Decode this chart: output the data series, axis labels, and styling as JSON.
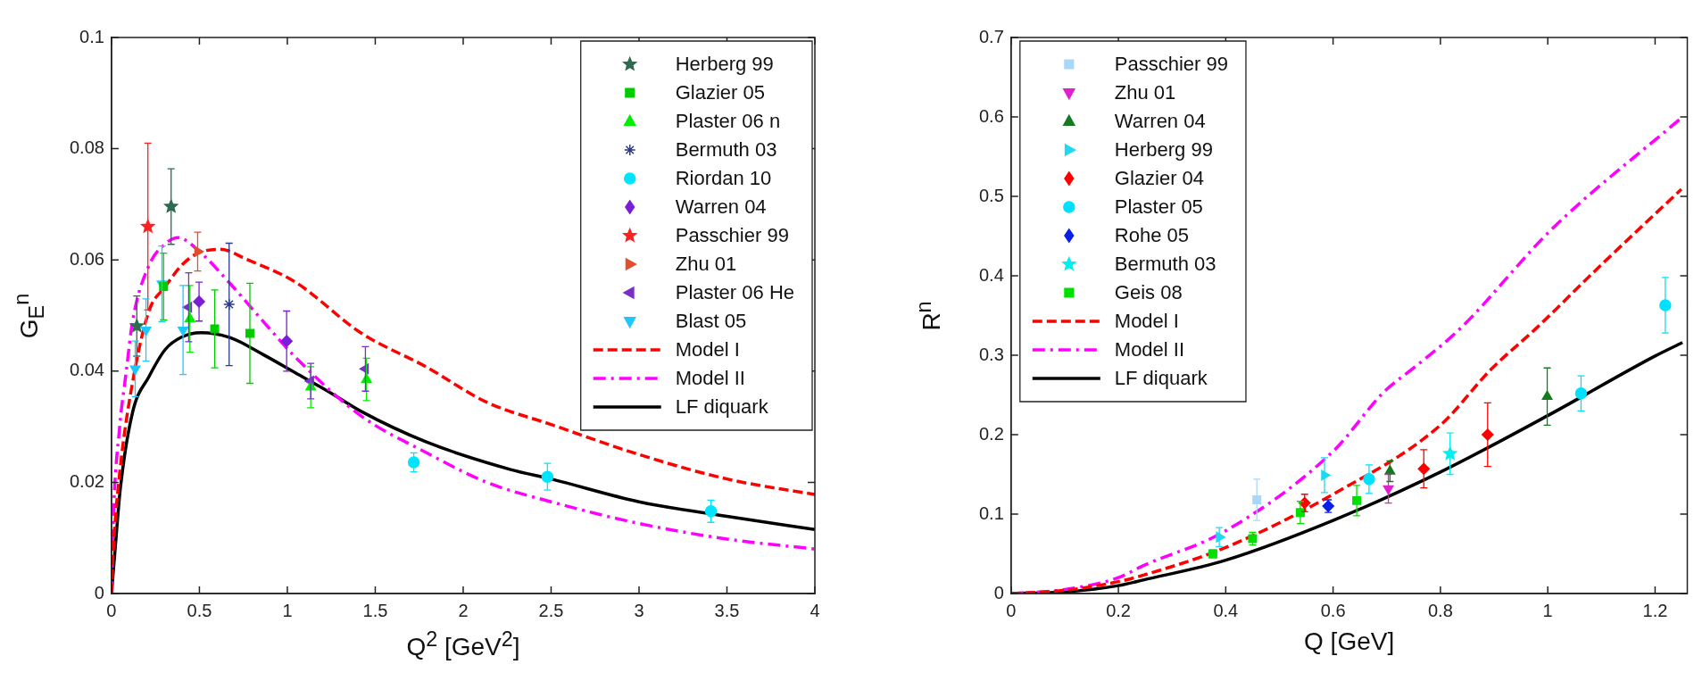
{
  "chart_data": [
    {
      "type": "scatter",
      "xlabel": "Q$^{2}$ [GeV$^{2}$]",
      "ylabel": "G$_{E}$$^{n}$",
      "xlim": [
        0,
        4
      ],
      "ylim": [
        0,
        0.1
      ],
      "xticks": [
        0,
        0.5,
        1,
        1.5,
        2,
        2.5,
        3,
        3.5,
        4
      ],
      "yticks": [
        0,
        0.02,
        0.04,
        0.06,
        0.08,
        0.1
      ],
      "legend": "top right",
      "series": [
        {
          "name": "Herberg 99",
          "type": "scatter",
          "marker": "star",
          "color": "#2e6b4f",
          "x": [
            0.144,
            0.339
          ],
          "values": [
            0.0481,
            0.0696
          ],
          "errors": [
            0.0054,
            0.0068
          ]
        },
        {
          "name": "Glazier 05",
          "type": "scatter",
          "marker": "square",
          "color": "#00cc00",
          "x": [
            0.296,
            0.587,
            0.787
          ],
          "values": [
            0.0552,
            0.0476,
            0.0468
          ],
          "errors": [
            0.006,
            0.007,
            0.009
          ]
        },
        {
          "name": "Plaster 06 n",
          "type": "scatter",
          "marker": "triangle",
          "color": "#00ee00",
          "x": [
            0.446,
            1.133,
            1.45
          ],
          "values": [
            0.0494,
            0.0371,
            0.0385
          ],
          "errors": [
            0.006,
            0.0037,
            0.0038
          ]
        },
        {
          "name": "Bermuth 03",
          "type": "scatter",
          "marker": "cross",
          "color": "#2a3a8c",
          "x": [
            0.669
          ],
          "values": [
            0.052
          ],
          "errors": [
            0.011
          ]
        },
        {
          "name": "Riordan 10",
          "type": "scatter",
          "marker": "circle",
          "color": "#00e5ff",
          "x": [
            1.719,
            2.479,
            3.409
          ],
          "values": [
            0.0236,
            0.021,
            0.0148
          ],
          "errors": [
            0.0017,
            0.0024,
            0.002
          ]
        },
        {
          "name": "Warren 04",
          "type": "scatter",
          "marker": "diamond",
          "color": "#7a1fd6",
          "x": [
            0.498,
            0.996
          ],
          "values": [
            0.0525,
            0.0454
          ],
          "errors": [
            0.0035,
            0.0054
          ]
        },
        {
          "name": "Passchier 99",
          "type": "scatter",
          "marker": "star",
          "color": "#ff2020",
          "x": [
            0.207
          ],
          "values": [
            0.066
          ],
          "errors": [
            0.015
          ]
        },
        {
          "name": "Zhu 01",
          "type": "scatter",
          "marker": "triangle-right",
          "color": "#e05030",
          "x": [
            0.49
          ],
          "values": [
            0.0615
          ],
          "errors": [
            0.0035
          ]
        },
        {
          "name": "Plaster 06 He",
          "type": "scatter",
          "marker": "triangle-left",
          "color": "#7a2fc8",
          "x": [
            0.439,
            1.133,
            1.444
          ],
          "values": [
            0.0515,
            0.0382,
            0.0404
          ],
          "errors": [
            0.0062,
            0.0032,
            0.004
          ]
        },
        {
          "name": "Blast 05",
          "type": "scatter",
          "marker": "triangle-down",
          "color": "#1ec8ff",
          "x": [
            0.135,
            0.196,
            0.287,
            0.407
          ],
          "values": [
            0.0404,
            0.0474,
            0.0557,
            0.0474
          ],
          "errors": [
            0.005,
            0.0056,
            0.0068,
            0.008
          ]
        },
        {
          "name": "Model I",
          "type": "line",
          "marker": "none",
          "line_style": "dashed",
          "color": "#ff0000",
          "x": [
            0,
            0.01,
            0.046,
            0.12,
            0.213,
            0.306,
            0.398,
            0.49,
            0.62,
            0.768,
            1.046,
            1.417,
            1.787,
            2.134,
            2.5,
            3,
            3.5,
            4
          ],
          "values": [
            0,
            0.0077,
            0.0215,
            0.038,
            0.0508,
            0.0552,
            0.059,
            0.0612,
            0.0619,
            0.0601,
            0.056,
            0.0469,
            0.0408,
            0.0344,
            0.0304,
            0.025,
            0.0206,
            0.0178
          ]
        },
        {
          "name": "Model II",
          "type": "line",
          "marker": "none",
          "line_style": "dashdot",
          "color": "#ff00ff",
          "x": [
            0,
            0.01,
            0.046,
            0.083,
            0.12,
            0.213,
            0.306,
            0.38,
            0.49,
            0.676,
            0.861,
            1.046,
            1.417,
            1.787,
            2.134,
            2.5,
            3,
            3.5,
            4
          ],
          "values": [
            0,
            0.0132,
            0.0298,
            0.0397,
            0.049,
            0.059,
            0.0629,
            0.064,
            0.0618,
            0.0557,
            0.049,
            0.0425,
            0.032,
            0.0254,
            0.02,
            0.0165,
            0.0126,
            0.0098,
            0.008
          ]
        },
        {
          "name": "LF diquark",
          "type": "line",
          "marker": "none",
          "line_style": "solid",
          "color": "#000000",
          "x": [
            0,
            0.02,
            0.05,
            0.12,
            0.213,
            0.306,
            0.398,
            0.51,
            0.676,
            0.861,
            1.046,
            1.23,
            1.417,
            1.787,
            2.27,
            2.5,
            3,
            3.5,
            4
          ],
          "values": [
            0,
            0.0077,
            0.0188,
            0.0326,
            0.039,
            0.0439,
            0.0461,
            0.0469,
            0.046,
            0.043,
            0.0397,
            0.0364,
            0.0328,
            0.0273,
            0.0223,
            0.0206,
            0.0165,
            0.0139,
            0.0115
          ]
        }
      ]
    },
    {
      "type": "scatter",
      "xlabel": "Q [GeV]",
      "ylabel": "R$^{n}$",
      "xlim": [
        0,
        1.26
      ],
      "ylim": [
        0,
        0.7
      ],
      "xticks": [
        0,
        0.2,
        0.4,
        0.6,
        0.8,
        1,
        1.2
      ],
      "yticks": [
        0,
        0.1,
        0.2,
        0.3,
        0.4,
        0.5,
        0.6,
        0.7
      ],
      "legend": "top left",
      "series": [
        {
          "name": "Passchier 99",
          "type": "scatter",
          "marker": "square",
          "color": "#a8d8f8",
          "x": [
            0.458
          ],
          "values": [
            0.118
          ],
          "errors": [
            0.026
          ]
        },
        {
          "name": "Zhu 01",
          "type": "scatter",
          "marker": "triangle-down",
          "color": "#e020d0",
          "x": [
            0.703
          ],
          "values": [
            0.132
          ],
          "errors": [
            0.018
          ]
        },
        {
          "name": "Warren 04",
          "type": "scatter",
          "marker": "triangle",
          "color": "#157a20",
          "x": [
            0.706,
            0.999
          ],
          "values": [
            0.154,
            0.248
          ],
          "errors": [
            0.013,
            0.036
          ]
        },
        {
          "name": "Herberg 99",
          "type": "scatter",
          "marker": "triangle-right",
          "color": "#20d8f0",
          "x": [
            0.388,
            0.584
          ],
          "values": [
            0.071,
            0.149
          ],
          "errors": [
            0.012,
            0.022
          ]
        },
        {
          "name": "Glazier 04",
          "type": "scatter",
          "marker": "diamond",
          "color": "#ff0000",
          "x": [
            0.547,
            0.769,
            0.888
          ],
          "values": [
            0.114,
            0.157,
            0.2
          ],
          "errors": [
            0.011,
            0.024,
            0.04
          ]
        },
        {
          "name": "Plaster 05",
          "type": "scatter",
          "marker": "circle",
          "color": "#00e0ff",
          "x": [
            0.667,
            1.062,
            1.219
          ],
          "values": [
            0.144,
            0.252,
            0.363
          ],
          "errors": [
            0.018,
            0.022,
            0.035
          ]
        },
        {
          "name": "Rohe 05",
          "type": "scatter",
          "marker": "diamond",
          "color": "#0a20e8",
          "x": [
            0.591
          ],
          "values": [
            0.11
          ],
          "errors": [
            0.008
          ]
        },
        {
          "name": "Bermuth 03",
          "type": "scatter",
          "marker": "star",
          "color": "#00f0f0",
          "x": [
            0.818
          ],
          "values": [
            0.176
          ],
          "errors": [
            0.026
          ]
        },
        {
          "name": "Geis 08",
          "type": "scatter",
          "marker": "square",
          "color": "#00e000",
          "x": [
            0.376,
            0.45,
            0.539,
            0.644
          ],
          "values": [
            0.05,
            0.069,
            0.102,
            0.117
          ],
          "errors": [
            0.005,
            0.008,
            0.014,
            0.019
          ]
        },
        {
          "name": "Model I",
          "type": "line",
          "marker": "none",
          "line_style": "dashed",
          "color": "#ff0000",
          "x": [
            0,
            0.1,
            0.2,
            0.246,
            0.4,
            0.6,
            0.8,
            0.894,
            0.977,
            1.1,
            1.249
          ],
          "values": [
            0,
            0.004,
            0.015,
            0.023,
            0.058,
            0.125,
            0.212,
            0.282,
            0.333,
            0.414,
            0.509
          ]
        },
        {
          "name": "Model II",
          "type": "line",
          "marker": "none",
          "line_style": "dashdot",
          "color": "#ff00ff",
          "x": [
            0,
            0.1,
            0.2,
            0.246,
            0.4,
            0.6,
            0.695,
            0.754,
            0.836,
            1.008,
            1.251
          ],
          "values": [
            0,
            0.005,
            0.02,
            0.035,
            0.079,
            0.179,
            0.254,
            0.286,
            0.333,
            0.459,
            0.6
          ]
        },
        {
          "name": "LF diquark",
          "type": "line",
          "marker": "none",
          "line_style": "solid",
          "color": "#000000",
          "x": [
            0,
            0.1,
            0.2,
            0.246,
            0.4,
            0.6,
            0.8,
            1,
            1.2,
            1.251
          ],
          "values": [
            0,
            0.002,
            0.01,
            0.017,
            0.042,
            0.092,
            0.153,
            0.224,
            0.299,
            0.316
          ]
        }
      ]
    }
  ]
}
